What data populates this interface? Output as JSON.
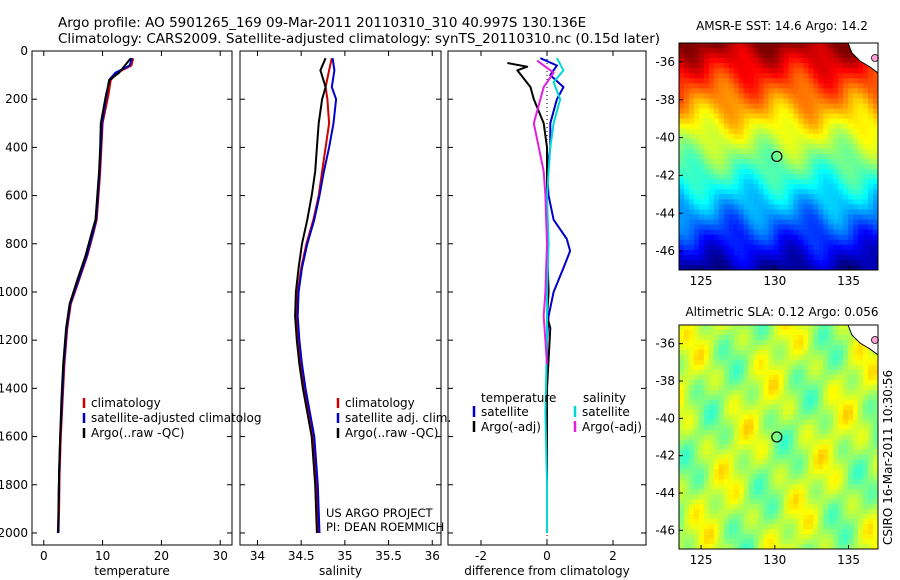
{
  "header": {
    "line1": "Argo profile: AO 5901265_169 09-Mar-2011 20110310_310 40.997S 130.136E",
    "line2": "Climatology: CARS2009. Satellite-adjusted climatology: synTS_20110310.nc (0.15d later)"
  },
  "colors": {
    "climatology": "#cc0000",
    "satellite": "#0000cc",
    "argo": "#000000",
    "sat_salinity": "#00d8d8",
    "argo_salinity": "#e020e0"
  },
  "credits": {
    "project": "US ARGO PROJECT",
    "pi": "PI: DEAN ROEMMICH"
  },
  "stamp": "CSIRO 16-Mar-2011 10:30:56",
  "chart_data": [
    {
      "type": "line",
      "id": "temperature",
      "xlabel": "temperature",
      "xlim": [
        -2,
        32
      ],
      "ylim": [
        2050,
        0
      ],
      "xticks": [
        0,
        10,
        20,
        30
      ],
      "yticks": [
        0,
        200,
        400,
        600,
        800,
        1000,
        1200,
        1400,
        1600,
        1800,
        2000
      ],
      "legend": [
        "climatology",
        "satellite-adjusted climatolog",
        "Argo(..raw -QC)"
      ],
      "series": [
        {
          "name": "climatology",
          "color": "#cc0000",
          "x": [
            15.2,
            14.9,
            12.5,
            11.4,
            11.0,
            10.0,
            9.8,
            9.6,
            9.3,
            9.0,
            8.5,
            7.4,
            6.0,
            4.6,
            4.0,
            3.5,
            3.2,
            2.9,
            2.7,
            2.6,
            2.5
          ],
          "y": [
            30,
            60,
            90,
            120,
            180,
            300,
            400,
            500,
            600,
            700,
            750,
            850,
            950,
            1050,
            1150,
            1300,
            1450,
            1600,
            1750,
            1900,
            2000
          ]
        },
        {
          "name": "satellite-adjusted climatolog",
          "color": "#0000cc",
          "x": [
            15.0,
            14.6,
            12.2,
            11.1,
            10.7,
            9.9,
            9.7,
            9.5,
            9.2,
            8.9,
            8.4,
            7.3,
            5.9,
            4.5,
            3.9,
            3.4,
            3.1,
            2.8,
            2.6,
            2.5,
            2.5
          ],
          "y": [
            30,
            60,
            90,
            120,
            180,
            300,
            400,
            500,
            600,
            700,
            750,
            850,
            950,
            1050,
            1150,
            1300,
            1450,
            1600,
            1750,
            1900,
            2000
          ]
        },
        {
          "name": "Argo(..raw -QC)",
          "color": "#000000",
          "x": [
            14.8,
            13.8,
            12.8,
            11.2,
            10.6,
            9.7,
            9.6,
            9.4,
            9.1,
            8.8,
            8.2,
            7.1,
            5.7,
            4.4,
            3.8,
            3.3,
            3.0,
            2.8,
            2.6,
            2.5,
            2.4
          ],
          "y": [
            30,
            60,
            90,
            120,
            180,
            300,
            400,
            500,
            600,
            700,
            750,
            850,
            950,
            1050,
            1150,
            1300,
            1450,
            1600,
            1750,
            1900,
            2000
          ]
        }
      ]
    },
    {
      "type": "line",
      "id": "salinity",
      "xlabel": "salinity",
      "xlim": [
        33.8,
        36.1
      ],
      "ylim": [
        2050,
        0
      ],
      "xticks": [
        34,
        34.5,
        35,
        35.5,
        36
      ],
      "legend": [
        "climatology",
        "satellite adj. clim.",
        "Argo(..raw -QC)"
      ],
      "series": [
        {
          "name": "climatology",
          "color": "#cc0000",
          "x": [
            34.85,
            34.82,
            34.78,
            34.8,
            34.82,
            34.78,
            34.74,
            34.7,
            34.64,
            34.56,
            34.5,
            34.46,
            34.45,
            34.47,
            34.5,
            34.54,
            34.59,
            34.64,
            34.68,
            34.7
          ],
          "y": [
            30,
            80,
            150,
            200,
            300,
            400,
            500,
            600,
            700,
            800,
            900,
            1000,
            1100,
            1200,
            1300,
            1400,
            1500,
            1600,
            1800,
            2000
          ]
        },
        {
          "name": "satellite adj. clim.",
          "color": "#0000cc",
          "x": [
            34.86,
            34.88,
            34.85,
            34.9,
            34.87,
            34.82,
            34.76,
            34.71,
            34.65,
            34.57,
            34.51,
            34.47,
            34.46,
            34.48,
            34.51,
            34.55,
            34.6,
            34.65,
            34.69,
            34.71
          ],
          "y": [
            30,
            80,
            150,
            200,
            300,
            400,
            500,
            600,
            700,
            800,
            900,
            1000,
            1100,
            1200,
            1300,
            1400,
            1500,
            1600,
            1800,
            2000
          ]
        },
        {
          "name": "Argo(..raw -QC)",
          "color": "#000000",
          "x": [
            34.78,
            34.72,
            34.78,
            34.74,
            34.7,
            34.68,
            34.66,
            34.62,
            34.57,
            34.51,
            34.47,
            34.44,
            34.43,
            34.45,
            34.48,
            34.52,
            34.57,
            34.62,
            34.66,
            34.68
          ],
          "y": [
            30,
            80,
            150,
            200,
            300,
            400,
            500,
            600,
            700,
            800,
            900,
            1000,
            1100,
            1200,
            1300,
            1400,
            1500,
            1600,
            1800,
            2000
          ]
        }
      ]
    },
    {
      "type": "line",
      "id": "difference",
      "xlabel": "difference from climatology",
      "xlim": [
        -3,
        3
      ],
      "ylim": [
        2050,
        0
      ],
      "xticks": [
        -2,
        0,
        2
      ],
      "legend": [
        "temperature",
        "satellite",
        "Argo(-adj)",
        "salinity",
        "satellite",
        "Argo(-adj)"
      ],
      "series": [
        {
          "name": "temperature satellite",
          "color": "#0000cc",
          "x": [
            -0.2,
            0.3,
            0.1,
            0.5,
            0.3,
            0.1,
            0.1,
            0.0,
            0.05,
            0.2,
            0.6,
            0.7,
            0.5,
            0.2,
            0.05,
            0.0,
            0.0,
            0.0
          ],
          "y": [
            30,
            60,
            100,
            150,
            200,
            300,
            400,
            500,
            600,
            700,
            780,
            830,
            900,
            1000,
            1100,
            1200,
            1500,
            2000
          ]
        },
        {
          "name": "temperature Argo(-adj)",
          "color": "#000000",
          "x": [
            -1.2,
            -0.6,
            -0.9,
            -0.5,
            -0.4,
            -0.1,
            0.0,
            0.0,
            0.0,
            0.05,
            0.0,
            0.1,
            0.0,
            0.0
          ],
          "y": [
            50,
            65,
            80,
            150,
            200,
            300,
            400,
            600,
            800,
            1000,
            1100,
            1150,
            1400,
            2000
          ]
        },
        {
          "name": "salinity satellite",
          "color": "#00d8d8",
          "x": [
            0.3,
            0.5,
            0.2,
            0.4,
            0.2,
            0.1,
            0.05,
            0.0,
            0.05,
            0.0,
            0.0,
            -0.05,
            0.0,
            0.0
          ],
          "y": [
            30,
            80,
            130,
            200,
            300,
            400,
            500,
            600,
            800,
            1000,
            1200,
            1500,
            1800,
            2000
          ]
        },
        {
          "name": "salinity Argo(-adj)",
          "color": "#e020e0",
          "x": [
            -0.3,
            0.2,
            -0.1,
            -0.4,
            -0.25,
            -0.1,
            -0.05,
            0.0,
            -0.05,
            -0.1,
            -0.05,
            0.0
          ],
          "y": [
            40,
            90,
            150,
            300,
            400,
            500,
            600,
            800,
            1000,
            1100,
            1200,
            1300
          ]
        }
      ]
    },
    {
      "type": "heatmap",
      "id": "sst",
      "title": "AMSR-E SST: 14.6 Argo: 14.2",
      "xlim": [
        123.5,
        137
      ],
      "ylim": [
        -47,
        -35
      ],
      "xticks": [
        125,
        130,
        135
      ],
      "yticks": [
        -36,
        -38,
        -40,
        -42,
        -44,
        -46
      ],
      "point": {
        "lon": 130.136,
        "lat": -40.997
      },
      "colormap": "jet"
    },
    {
      "type": "heatmap",
      "id": "sla",
      "title": "Altimetric SLA: 0.12 Argo: 0.056",
      "xlim": [
        123.5,
        137
      ],
      "ylim": [
        -47,
        -35
      ],
      "xticks": [
        125,
        130,
        135
      ],
      "yticks": [
        -36,
        -38,
        -40,
        -42,
        -44,
        -46
      ],
      "point": {
        "lon": 130.136,
        "lat": -40.997
      },
      "colormap": "jet"
    }
  ]
}
